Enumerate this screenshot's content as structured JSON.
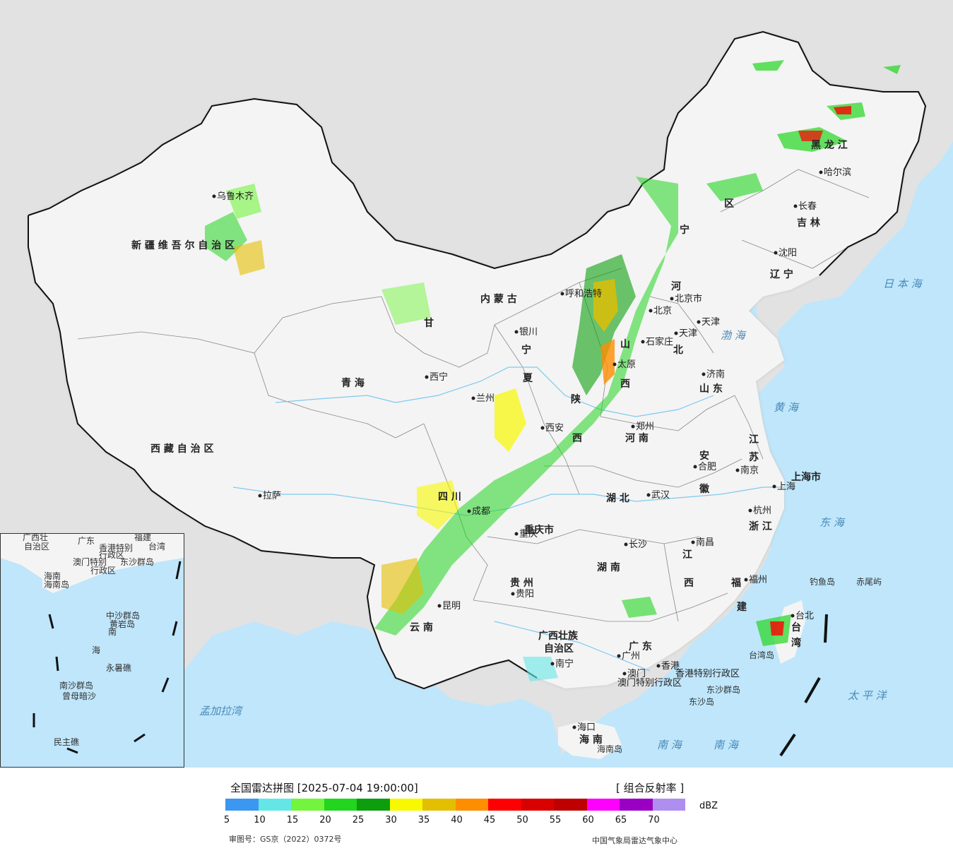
{
  "legend": {
    "title": "全国雷达拼图 [2025-07-04 19:00:00]",
    "product": "[ 组合反射率 ]",
    "unit": "dBZ",
    "review_no": "审图号：GS京（2022）0372号",
    "producer": "中国气象局雷达气象中心",
    "ticks": [
      "5",
      "10",
      "15",
      "20",
      "25",
      "30",
      "35",
      "40",
      "45",
      "50",
      "55",
      "60",
      "65",
      "70"
    ],
    "colors": [
      "#3b97ef",
      "#64e6e6",
      "#72f53c",
      "#22d51f",
      "#0c9e0d",
      "#f8f800",
      "#e4be00",
      "#fe8d00",
      "#fe0000",
      "#d90000",
      "#bf0000",
      "#fe00fe",
      "#9a00c4",
      "#ae8ff0"
    ]
  },
  "map": {
    "colors": {
      "land": "#f4f4f4",
      "sea": "#bfe6fb",
      "outside": "#e2e2e2",
      "border": "#111111",
      "halo": "#c8c8c8"
    },
    "provinces": [
      "新 疆 维 吾 尔 自 治 区",
      "西 藏 自 治 区",
      "青 海",
      "甘",
      "内 蒙 古",
      "宁",
      "夏",
      "陕",
      "西",
      "山",
      "西",
      "河",
      "北",
      "四 川",
      "重庆市",
      "云 南",
      "贵 州",
      "广西壮族",
      "自治区",
      "广 东",
      "海 南",
      "湖 北",
      "湖 南",
      "河 南",
      "安",
      "徽",
      "山 东",
      "江",
      "苏",
      "上海市",
      "浙 江",
      "江",
      "西",
      "福",
      "建",
      "台",
      "湾",
      "黑 龙 江",
      "吉 林",
      "辽 宁",
      "宁",
      "区"
    ],
    "cities": [
      "乌鲁木齐",
      "拉萨",
      "西宁",
      "兰州",
      "银川",
      "呼和浩特",
      "北京",
      "天津",
      "石家庄",
      "太原",
      "济南",
      "郑州",
      "西安",
      "成都",
      "重庆",
      "武汉",
      "合肥",
      "南京",
      "上海",
      "杭州",
      "长沙",
      "南昌",
      "福州",
      "贵阳",
      "昆明",
      "南宁",
      "广州",
      "香港",
      "澳门",
      "海口",
      "台北",
      "沈阳",
      "长春",
      "哈尔滨",
      "北京市",
      "天津"
    ],
    "seas": [
      "日 本 海",
      "渤 海",
      "黄 海",
      "东 海",
      "太 平 洋",
      "南 海",
      "孟加拉湾",
      "南 海"
    ],
    "islands": [
      "钓鱼岛",
      "赤尾屿",
      "东沙群岛",
      "东沙岛",
      "台湾岛",
      "海南岛"
    ],
    "sar": [
      "香港特别行政区",
      "澳门特别行政区"
    ],
    "inset": [
      "广西壮",
      "自治区",
      "广东",
      "福建",
      "台湾",
      "香港特别",
      "行政区",
      "澳门特别",
      "行政区",
      "东沙群岛",
      "海南",
      "海南岛",
      "中沙群岛",
      "黄岩岛",
      "南",
      "海",
      "永暑礁",
      "南沙群岛",
      "曾母暗沙",
      "民主礁"
    ]
  }
}
